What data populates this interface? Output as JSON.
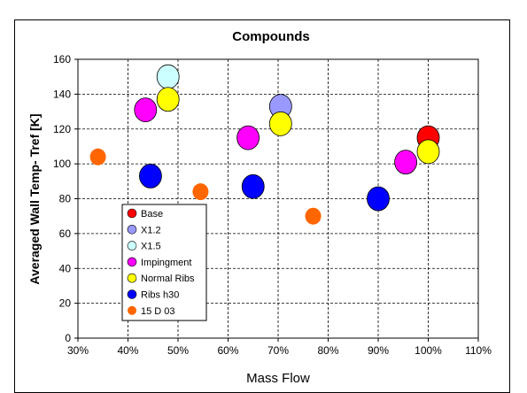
{
  "chart_data": {
    "type": "scatter",
    "title": "Compounds",
    "xlabel": "Mass Flow",
    "ylabel": "Averaged Wall Temp- Tref [K]",
    "xlim": [
      30,
      110
    ],
    "ylim": [
      0,
      160
    ],
    "xticks": [
      "30%",
      "40%",
      "50%",
      "60%",
      "70%",
      "80%",
      "90%",
      "100%",
      "110%"
    ],
    "yticks": [
      "0",
      "20",
      "40",
      "60",
      "80",
      "100",
      "120",
      "140",
      "160"
    ],
    "grid": true,
    "legend_placement": "lower-left",
    "series": [
      {
        "name": "Base",
        "color": "#ff0000",
        "size": "large",
        "points": [
          [
            100,
            115
          ]
        ]
      },
      {
        "name": "X1.2",
        "color": "#9999ff",
        "size": "large",
        "points": [
          [
            70.5,
            133
          ]
        ]
      },
      {
        "name": "X1.5",
        "color": "#ccffff",
        "size": "large",
        "points": [
          [
            48,
            150
          ]
        ]
      },
      {
        "name": "Impingment",
        "color": "#ff00ff",
        "size": "large",
        "points": [
          [
            43.5,
            131
          ],
          [
            64,
            115
          ],
          [
            95.5,
            101
          ]
        ]
      },
      {
        "name": "Normal Ribs",
        "color": "#ffff00",
        "size": "large",
        "points": [
          [
            48,
            137
          ],
          [
            70.5,
            123
          ],
          [
            100,
            107
          ]
        ]
      },
      {
        "name": "Ribs h30",
        "color": "#0000ff",
        "size": "large",
        "points": [
          [
            44.5,
            93
          ],
          [
            65,
            87
          ],
          [
            90,
            80
          ]
        ]
      },
      {
        "name": "15 D 03",
        "color": "#ff6600",
        "size": "small",
        "points": [
          [
            34,
            104
          ],
          [
            54.5,
            84
          ],
          [
            77,
            70
          ]
        ]
      }
    ]
  }
}
